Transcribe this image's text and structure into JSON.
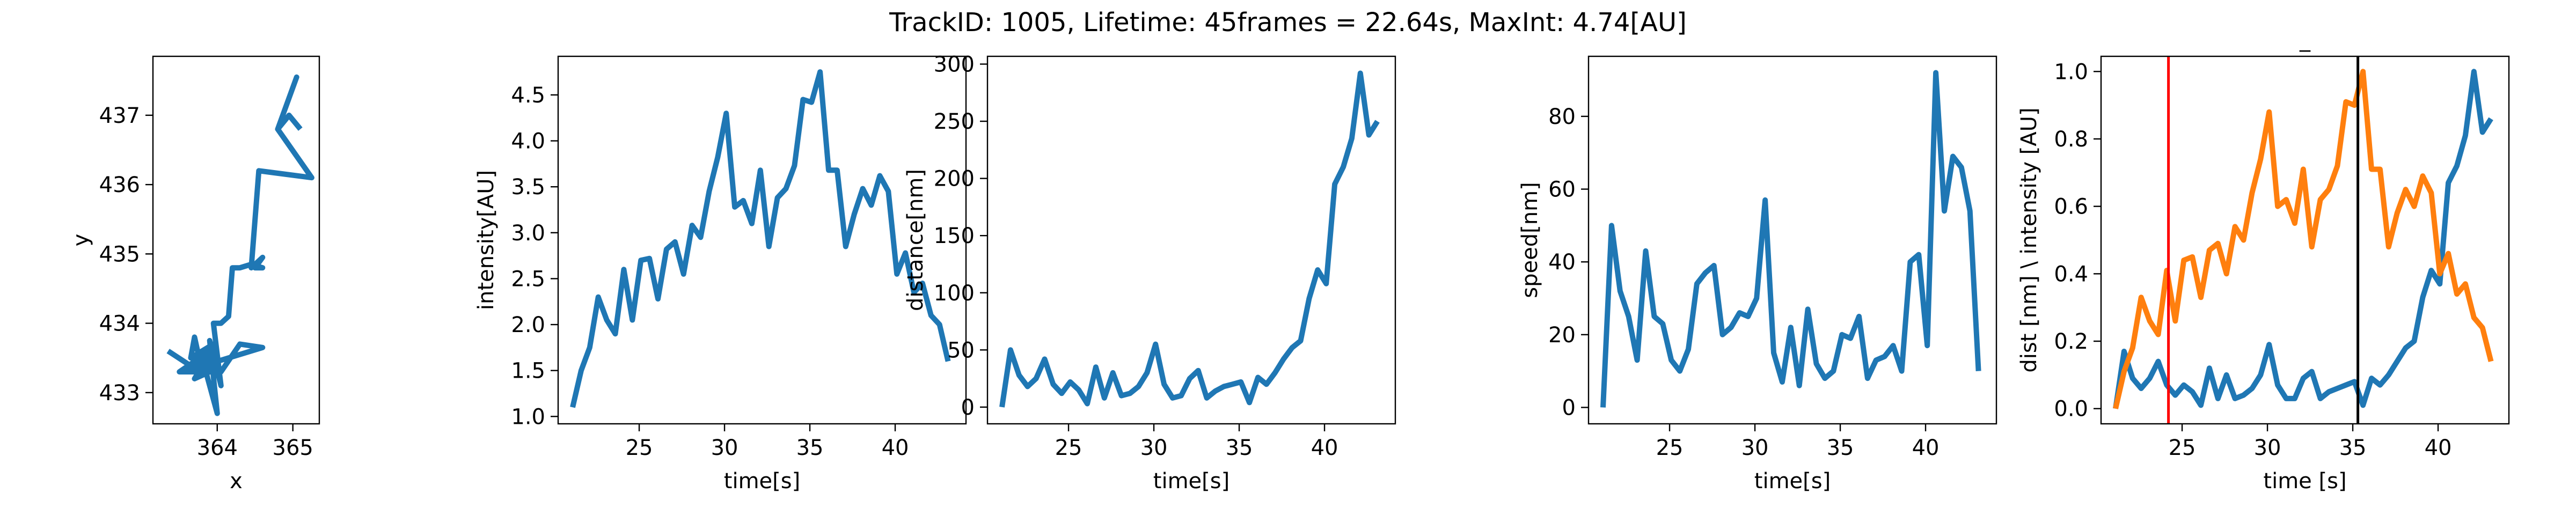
{
  "figure": {
    "suptitle": "TrackID: 1005, Lifetime: 45frames = 22.64s, MaxInt: 4.74[AU]"
  },
  "colors": {
    "blue": "#1f77b4",
    "orange": "#ff7f0e",
    "red": "#ff0000",
    "black": "#000000"
  },
  "chart_data": [
    {
      "type": "line",
      "name": "trajectory",
      "title": "",
      "xlabel": "x",
      "ylabel": "y",
      "xlim": [
        363.15,
        365.35
      ],
      "ylim": [
        432.55,
        437.85
      ],
      "xticks": [
        364,
        365
      ],
      "yticks": [
        433,
        434,
        435,
        436,
        437
      ],
      "series": [
        {
          "color": "blue",
          "x": [
            365.1,
            364.95,
            364.8,
            365.05,
            364.8,
            364.8,
            365.25,
            364.55,
            364.45,
            364.55,
            364.6,
            364.5,
            364.6,
            364.45,
            364.3,
            364.2,
            364.15,
            364.1,
            364.05,
            363.95,
            364.05,
            363.9,
            364.0,
            363.8,
            363.9,
            363.7,
            363.95,
            363.85,
            363.7,
            363.8,
            363.95,
            363.6,
            363.85,
            363.8,
            363.7,
            363.65,
            363.95,
            363.75,
            363.9,
            363.5,
            364.05,
            364.3,
            364.6,
            363.7,
            363.35
          ],
          "y": [
            436.8,
            437.0,
            436.8,
            437.55,
            436.8,
            436.8,
            436.1,
            436.2,
            434.8,
            434.9,
            434.95,
            434.8,
            434.8,
            434.85,
            434.8,
            434.8,
            434.1,
            434.05,
            434.0,
            434.0,
            433.1,
            433.75,
            432.7,
            433.5,
            433.3,
            433.2,
            433.65,
            433.35,
            433.4,
            433.6,
            433.65,
            433.3,
            433.6,
            433.3,
            433.8,
            433.5,
            433.7,
            433.4,
            433.6,
            433.3,
            433.3,
            433.7,
            433.65,
            433.35,
            433.6
          ]
        }
      ]
    },
    {
      "type": "line",
      "name": "intensity",
      "title": "",
      "xlabel": "time[s]",
      "ylabel": "intensity[AU]",
      "xlim": [
        20.25,
        44.15
      ],
      "ylim": [
        0.92,
        4.92
      ],
      "xticks": [
        25,
        30,
        35,
        40
      ],
      "yticks": [
        1.0,
        1.5,
        2.0,
        2.5,
        3.0,
        3.5,
        4.0,
        4.5
      ],
      "ytick_labels": [
        "1.0",
        "1.5",
        "2.0",
        "2.5",
        "3.0",
        "3.5",
        "4.0",
        "4.5"
      ],
      "series": [
        {
          "color": "blue",
          "x": [
            21.1,
            21.6,
            22.1,
            22.6,
            23.1,
            23.6,
            24.1,
            24.6,
            25.1,
            25.6,
            26.1,
            26.6,
            27.1,
            27.6,
            28.1,
            28.6,
            29.1,
            29.6,
            30.1,
            30.6,
            31.1,
            31.6,
            32.1,
            32.6,
            33.1,
            33.6,
            34.1,
            34.6,
            35.1,
            35.6,
            36.1,
            36.6,
            37.1,
            37.6,
            38.1,
            38.6,
            39.1,
            39.6,
            40.1,
            40.6,
            41.1,
            41.6,
            42.1,
            42.6,
            43.1
          ],
          "y": [
            1.1,
            1.5,
            1.75,
            2.3,
            2.05,
            1.9,
            2.6,
            2.05,
            2.7,
            2.72,
            2.28,
            2.82,
            2.9,
            2.55,
            3.08,
            2.95,
            3.45,
            3.82,
            4.3,
            3.28,
            3.35,
            3.1,
            3.68,
            2.85,
            3.38,
            3.48,
            3.73,
            4.45,
            4.42,
            4.75,
            3.68,
            3.68,
            2.85,
            3.2,
            3.48,
            3.3,
            3.62,
            3.45,
            2.55,
            2.78,
            2.35,
            2.45,
            2.1,
            2.0,
            1.6
          ]
        }
      ]
    },
    {
      "type": "line",
      "name": "distance",
      "title": "",
      "xlabel": "time[s]",
      "ylabel": "distance[nm]",
      "xlim": [
        20.25,
        44.15
      ],
      "ylim": [
        -14.6,
        306.8
      ],
      "xticks": [
        25,
        30,
        35,
        40
      ],
      "yticks": [
        0,
        50,
        100,
        150,
        200,
        250,
        300
      ],
      "series": [
        {
          "color": "blue",
          "x": [
            21.1,
            21.6,
            22.1,
            22.6,
            23.1,
            23.6,
            24.1,
            24.6,
            25.1,
            25.6,
            26.1,
            26.6,
            27.1,
            27.6,
            28.1,
            28.6,
            29.1,
            29.6,
            30.1,
            30.6,
            31.1,
            31.6,
            32.1,
            32.6,
            33.1,
            33.6,
            34.1,
            34.6,
            35.1,
            35.6,
            36.1,
            36.6,
            37.1,
            37.6,
            38.1,
            38.6,
            39.1,
            39.6,
            40.1,
            40.6,
            41.1,
            41.6,
            42.1,
            42.6,
            43.1
          ],
          "y": [
            0,
            50,
            28,
            18,
            25,
            42,
            20,
            12,
            22,
            15,
            3,
            35,
            8,
            30,
            10,
            12,
            18,
            30,
            55,
            20,
            8,
            10,
            25,
            32,
            8,
            14,
            18,
            20,
            22,
            4,
            26,
            20,
            30,
            42,
            52,
            58,
            95,
            120,
            108,
            195,
            210,
            235,
            292,
            238,
            250
          ]
        }
      ]
    },
    {
      "type": "line",
      "name": "speed",
      "title": "",
      "xlabel": "time[s]",
      "ylabel": "speed[nm]",
      "xlim": [
        20.25,
        44.15
      ],
      "ylim": [
        -4.5,
        96.5
      ],
      "xticks": [
        25,
        30,
        35,
        40
      ],
      "yticks": [
        0,
        20,
        40,
        60,
        80
      ],
      "series": [
        {
          "color": "blue",
          "x": [
            21.1,
            21.6,
            22.1,
            22.6,
            23.1,
            23.6,
            24.1,
            24.6,
            25.1,
            25.6,
            26.1,
            26.6,
            27.1,
            27.6,
            28.1,
            28.6,
            29.1,
            29.6,
            30.1,
            30.6,
            31.1,
            31.6,
            32.1,
            32.6,
            33.1,
            33.6,
            34.1,
            34.6,
            35.1,
            35.6,
            36.1,
            36.6,
            37.1,
            37.6,
            38.1,
            38.6,
            39.1,
            39.6,
            40.1,
            40.6,
            41.1,
            41.6,
            42.1,
            42.6,
            43.1
          ],
          "y": [
            0,
            50,
            32,
            25,
            13,
            43,
            25,
            23,
            13,
            10,
            16,
            34,
            37,
            39,
            20,
            22,
            26,
            25,
            30,
            57,
            15,
            7,
            22,
            6,
            27,
            12,
            8,
            10,
            20,
            19,
            25,
            8,
            13,
            14,
            17,
            10,
            40,
            42,
            17,
            92,
            54,
            69,
            66,
            54,
            10
          ]
        }
      ]
    },
    {
      "type": "line",
      "name": "normalized",
      "title": "_",
      "xlabel": "time [s]",
      "ylabel": "dist [nm] \\ intensity [AU]",
      "xlim": [
        20.25,
        44.15
      ],
      "ylim": [
        -0.045,
        1.045
      ],
      "xticks": [
        25,
        30,
        35,
        40
      ],
      "yticks": [
        0.0,
        0.2,
        0.4,
        0.6,
        0.8,
        1.0
      ],
      "ytick_labels": [
        "0.0",
        "0.2",
        "0.4",
        "0.6",
        "0.8",
        "1.0"
      ],
      "vlines": [
        {
          "x": 24.2,
          "color": "red"
        },
        {
          "x": 35.3,
          "color": "black"
        }
      ],
      "series": [
        {
          "color": "blue",
          "x": [
            21.1,
            21.6,
            22.1,
            22.6,
            23.1,
            23.6,
            24.1,
            24.6,
            25.1,
            25.6,
            26.1,
            26.6,
            27.1,
            27.6,
            28.1,
            28.6,
            29.1,
            29.6,
            30.1,
            30.6,
            31.1,
            31.6,
            32.1,
            32.6,
            33.1,
            33.6,
            34.1,
            34.6,
            35.1,
            35.6,
            36.1,
            36.6,
            37.1,
            37.6,
            38.1,
            38.6,
            39.1,
            39.6,
            40.1,
            40.6,
            41.1,
            41.6,
            42.1,
            42.6,
            43.1
          ],
          "y": [
            0.0,
            0.17,
            0.09,
            0.06,
            0.09,
            0.14,
            0.07,
            0.04,
            0.07,
            0.05,
            0.01,
            0.12,
            0.03,
            0.1,
            0.03,
            0.04,
            0.06,
            0.1,
            0.19,
            0.07,
            0.03,
            0.03,
            0.09,
            0.11,
            0.03,
            0.05,
            0.06,
            0.07,
            0.08,
            0.01,
            0.09,
            0.07,
            0.1,
            0.14,
            0.18,
            0.2,
            0.33,
            0.41,
            0.37,
            0.67,
            0.72,
            0.81,
            1.0,
            0.82,
            0.86
          ]
        },
        {
          "color": "orange",
          "x": [
            21.1,
            21.6,
            22.1,
            22.6,
            23.1,
            23.6,
            24.1,
            24.6,
            25.1,
            25.6,
            26.1,
            26.6,
            27.1,
            27.6,
            28.1,
            28.6,
            29.1,
            29.6,
            30.1,
            30.6,
            31.1,
            31.6,
            32.1,
            32.6,
            33.1,
            33.6,
            34.1,
            34.6,
            35.1,
            35.6,
            36.1,
            36.6,
            37.1,
            37.6,
            38.1,
            38.6,
            39.1,
            39.6,
            40.1,
            40.6,
            41.1,
            41.6,
            42.1,
            42.6,
            43.1
          ],
          "y": [
            0.0,
            0.11,
            0.18,
            0.33,
            0.26,
            0.22,
            0.41,
            0.26,
            0.44,
            0.45,
            0.33,
            0.47,
            0.49,
            0.4,
            0.54,
            0.5,
            0.64,
            0.74,
            0.88,
            0.6,
            0.62,
            0.55,
            0.71,
            0.48,
            0.62,
            0.65,
            0.72,
            0.91,
            0.9,
            1.0,
            0.71,
            0.71,
            0.48,
            0.58,
            0.65,
            0.6,
            0.69,
            0.64,
            0.4,
            0.46,
            0.34,
            0.37,
            0.27,
            0.24,
            0.14
          ]
        }
      ]
    }
  ]
}
